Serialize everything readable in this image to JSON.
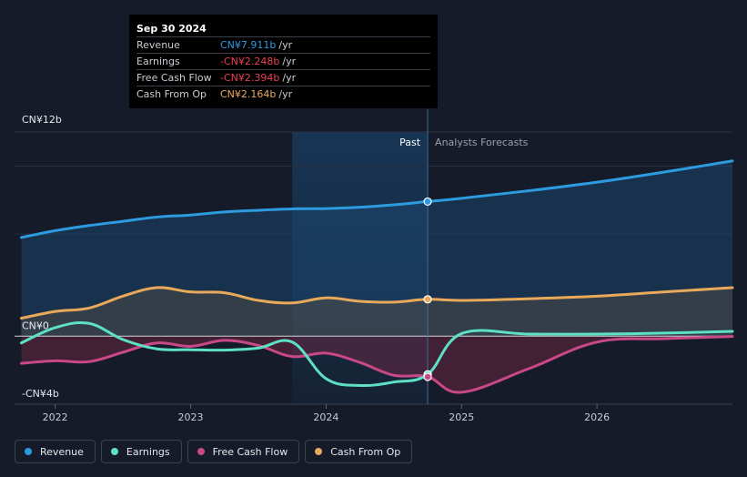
{
  "tooltip": {
    "date": "Sep 30 2024",
    "rows": [
      {
        "label": "Revenue",
        "value": "CN¥7.911b",
        "unit": "/yr",
        "color": "#2d9be0"
      },
      {
        "label": "Earnings",
        "value": "-CN¥2.248b",
        "unit": "/yr",
        "color": "#e8404f"
      },
      {
        "label": "Free Cash Flow",
        "value": "-CN¥2.394b",
        "unit": "/yr",
        "color": "#e8404f"
      },
      {
        "label": "Cash From Op",
        "value": "CN¥2.164b",
        "unit": "/yr",
        "color": "#e9a95a"
      }
    ]
  },
  "legend": [
    {
      "label": "Revenue",
      "color": "#2d9be0"
    },
    {
      "label": "Earnings",
      "color": "#5ee0c4"
    },
    {
      "label": "Free Cash Flow",
      "color": "#c84888"
    },
    {
      "label": "Cash From Op",
      "color": "#e9a95a"
    }
  ],
  "chart_data": {
    "type": "line",
    "y_tick_labels": [
      "CN¥12b",
      "CN¥0",
      "-CN¥4b"
    ],
    "x_tick_labels": [
      "2022",
      "2023",
      "2024",
      "2025",
      "2026"
    ],
    "past_label": "Past",
    "forecast_label": "Analysts Forecasts",
    "ylim": [
      -4,
      12
    ],
    "xlim": [
      2021.7,
      2027.0
    ],
    "past_start": 2023.75,
    "divider_x": 2024.75,
    "series": [
      {
        "name": "Revenue",
        "color": "#2d9be0",
        "x": [
          2021.75,
          2022.0,
          2022.25,
          2022.5,
          2022.75,
          2023.0,
          2023.25,
          2023.5,
          2023.75,
          2024.0,
          2024.25,
          2024.5,
          2024.75,
          2025.0,
          2025.5,
          2026.0,
          2026.5,
          2027.0
        ],
        "y": [
          5.8,
          6.2,
          6.5,
          6.75,
          7.0,
          7.12,
          7.3,
          7.4,
          7.48,
          7.5,
          7.58,
          7.72,
          7.911,
          8.1,
          8.55,
          9.05,
          9.65,
          10.3
        ]
      },
      {
        "name": "Earnings",
        "color": "#5ee0c4",
        "x": [
          2021.75,
          2022.0,
          2022.25,
          2022.5,
          2022.75,
          2023.0,
          2023.25,
          2023.5,
          2023.75,
          2024.0,
          2024.25,
          2024.5,
          2024.75,
          2025.0,
          2025.5,
          2026.0,
          2026.5,
          2027.0
        ],
        "y": [
          -0.4,
          0.5,
          0.75,
          -0.2,
          -0.75,
          -0.8,
          -0.82,
          -0.7,
          -0.35,
          -2.5,
          -2.9,
          -2.7,
          -2.248,
          0.15,
          0.12,
          0.12,
          0.18,
          0.28
        ]
      },
      {
        "name": "Free Cash Flow",
        "color": "#c84888",
        "x": [
          2021.75,
          2022.0,
          2022.25,
          2022.5,
          2022.75,
          2023.0,
          2023.25,
          2023.5,
          2023.75,
          2024.0,
          2024.25,
          2024.5,
          2024.75,
          2025.0,
          2025.5,
          2026.0,
          2026.5,
          2027.0
        ],
        "y": [
          -1.6,
          -1.45,
          -1.5,
          -0.95,
          -0.4,
          -0.6,
          -0.25,
          -0.55,
          -1.2,
          -1.0,
          -1.55,
          -2.3,
          -2.394,
          -3.3,
          -1.9,
          -0.35,
          -0.15,
          -0.02
        ]
      },
      {
        "name": "Cash From Op",
        "color": "#e9a95a",
        "x": [
          2021.75,
          2022.0,
          2022.25,
          2022.5,
          2022.75,
          2023.0,
          2023.25,
          2023.5,
          2023.75,
          2024.0,
          2024.25,
          2024.5,
          2024.75,
          2025.0,
          2025.5,
          2026.0,
          2026.5,
          2027.0
        ],
        "y": [
          1.05,
          1.45,
          1.65,
          2.35,
          2.85,
          2.6,
          2.55,
          2.1,
          1.95,
          2.25,
          2.05,
          2.0,
          2.164,
          2.1,
          2.2,
          2.35,
          2.6,
          2.85
        ]
      }
    ],
    "highlight_x": 2024.75
  }
}
